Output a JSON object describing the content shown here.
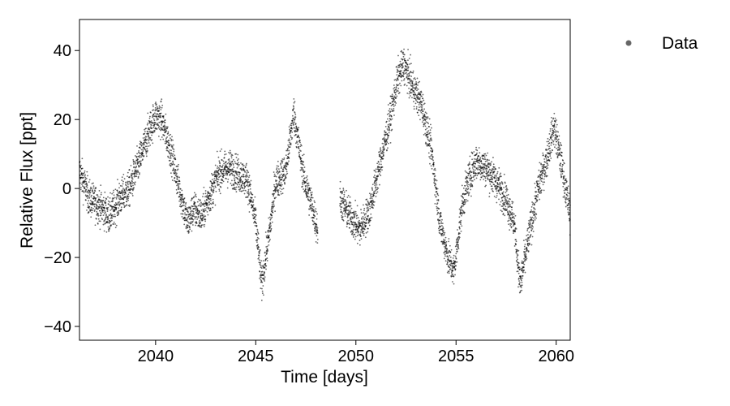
{
  "chart_data": {
    "type": "scatter",
    "title": "",
    "xlabel": "Time [days]",
    "ylabel": "Relative Flux [ppt]",
    "xlim": [
      2036.2,
      2060.7
    ],
    "ylim": [
      -44,
      49
    ],
    "xticks": [
      2040,
      2045,
      2050,
      2055,
      2060
    ],
    "yticks": [
      -40,
      -20,
      0,
      20,
      40
    ],
    "grid": false,
    "legend": {
      "placement": "outside-top-right",
      "entries": [
        "Data"
      ]
    },
    "marker_color": "#000000",
    "legend_marker_color": "#666666",
    "gap": [
      2048.1,
      2049.2
    ],
    "series": [
      {
        "name": "Data",
        "trend": {
          "x": [
            2036.2,
            2036.7,
            2037.2,
            2037.7,
            2038.2,
            2038.7,
            2039.2,
            2039.7,
            2040.0,
            2040.3,
            2040.8,
            2041.3,
            2041.6,
            2041.9,
            2042.3,
            2042.7,
            2043.2,
            2043.7,
            2044.2,
            2044.6,
            2045.0,
            2045.3,
            2045.7,
            2046.0,
            2046.5,
            2046.9,
            2047.4,
            2047.8,
            2048.1,
            2049.2,
            2049.7,
            2050.2,
            2050.7,
            2051.2,
            2051.7,
            2052.1,
            2052.4,
            2052.8,
            2053.3,
            2053.8,
            2054.2,
            2054.6,
            2054.9,
            2055.3,
            2055.6,
            2056.0,
            2056.5,
            2057.0,
            2057.5,
            2057.9,
            2058.2,
            2058.7,
            2059.1,
            2059.5,
            2059.9,
            2060.3,
            2060.7
          ],
          "y": [
            5,
            -3,
            -5,
            -8,
            -3,
            0,
            8,
            17,
            21,
            20,
            10,
            -3,
            -10,
            -6,
            -8,
            -2,
            5,
            6,
            4,
            2,
            -10,
            -28,
            -12,
            2,
            5,
            22,
            3,
            -5,
            -12,
            -3,
            -8,
            -12,
            -6,
            7,
            20,
            32,
            36,
            30,
            24,
            10,
            -10,
            -20,
            -24,
            -5,
            2,
            8,
            6,
            2,
            -3,
            -10,
            -28,
            -12,
            0,
            8,
            18,
            6,
            -8
          ]
        }
      }
    ]
  }
}
